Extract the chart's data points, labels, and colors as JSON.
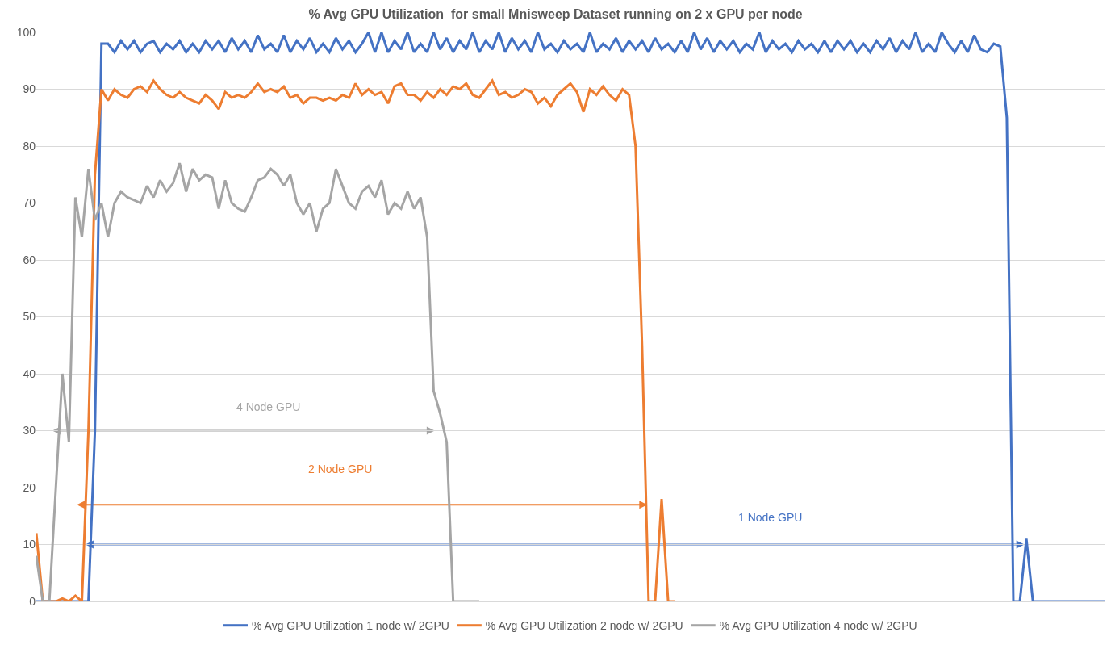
{
  "chart_data": {
    "type": "line",
    "title": "% Avg GPU Utilization  for small Mnisweep Dataset running on 2 x GPU per node",
    "categories": [
      null,
      null,
      null,
      null,
      null,
      null,
      null,
      null,
      null,
      null,
      null,
      null,
      null,
      null,
      null,
      null,
      null,
      null,
      null,
      null,
      null,
      null,
      null,
      null,
      null,
      null,
      null,
      null,
      null,
      null,
      null,
      null,
      null,
      null,
      null,
      null,
      null,
      null,
      null,
      null,
      null,
      null,
      null,
      null,
      null,
      null,
      null,
      null,
      null,
      null,
      null,
      null,
      null,
      null,
      null,
      null,
      null,
      null,
      null,
      null,
      null,
      null,
      null,
      null,
      null,
      null,
      null,
      null,
      null,
      null,
      null,
      null,
      null,
      null,
      null,
      null,
      null,
      null,
      null,
      null,
      null,
      null,
      null,
      null,
      null,
      null,
      null,
      null,
      null,
      null,
      null,
      null,
      null,
      null,
      null,
      null,
      null,
      null,
      null,
      null,
      null,
      null,
      null,
      null,
      null,
      null,
      null,
      null,
      null,
      null,
      null,
      null,
      null,
      null,
      null,
      null,
      null,
      null,
      null,
      null,
      null,
      null,
      null,
      null,
      null,
      null,
      null,
      null,
      null,
      null,
      null,
      null,
      null,
      null,
      null,
      null,
      null,
      null,
      null,
      null,
      null,
      null,
      null,
      null,
      null,
      null,
      null,
      null,
      null,
      null,
      null,
      null,
      null,
      null,
      null,
      null,
      null,
      null,
      null,
      null,
      null,
      null,
      null,
      null,
      null
    ],
    "series": [
      {
        "name": "% Avg GPU Utilization 1 node w/ 2GPU",
        "color": "#4472c4",
        "values": [
          0,
          0,
          0,
          0,
          0,
          0,
          0,
          0,
          0,
          30,
          98,
          98,
          96.5,
          98.5,
          97,
          98.5,
          96.5,
          98,
          98.5,
          96.5,
          98,
          97,
          98.5,
          96.5,
          98,
          96.5,
          98.5,
          97,
          98.5,
          96.5,
          99,
          97,
          98.5,
          96.5,
          99.5,
          97,
          98,
          96.5,
          99.5,
          96.5,
          98.5,
          97,
          99,
          96.5,
          98,
          96.5,
          99,
          97,
          98.5,
          96.5,
          98,
          100,
          96.5,
          100,
          96.5,
          98.5,
          97,
          100,
          96.5,
          98,
          96.5,
          100,
          97,
          99,
          96.5,
          98.5,
          97,
          100,
          96.5,
          98.5,
          97,
          100,
          96.5,
          99,
          97,
          98.5,
          96.5,
          100,
          97,
          98,
          96.5,
          98.5,
          97,
          98,
          96.5,
          100,
          96.5,
          98,
          97,
          99,
          96.5,
          98.5,
          97,
          98.5,
          96.5,
          99,
          97,
          98,
          96.5,
          98.5,
          96.5,
          100,
          97,
          99,
          96.5,
          98.5,
          97,
          98.5,
          96.5,
          98,
          97,
          100,
          96.5,
          98.5,
          97,
          98,
          96.5,
          98.5,
          97,
          98,
          96.5,
          98.5,
          96.5,
          98.5,
          97,
          98.5,
          96.5,
          98,
          96.5,
          98.5,
          97,
          99,
          96.5,
          98.5,
          97,
          100,
          96.5,
          98,
          96.5,
          100,
          98,
          96.5,
          98.5,
          96.5,
          99.5,
          97,
          96.5,
          98,
          97.5,
          85,
          0,
          0,
          11,
          0,
          0,
          0,
          0,
          0,
          0,
          0,
          0,
          0,
          0,
          0,
          0
        ]
      },
      {
        "name": "% Avg GPU Utilization 2 node w/ 2GPU",
        "color": "#ed7d31",
        "values": [
          12,
          0,
          0,
          0,
          0.5,
          0,
          1,
          0,
          30,
          75,
          90,
          88,
          90,
          89,
          88.5,
          90,
          90.5,
          89.5,
          91.5,
          90,
          89,
          88.5,
          89.5,
          88.5,
          88,
          87.5,
          89,
          88,
          86.5,
          89.5,
          88.5,
          89,
          88.5,
          89.5,
          91,
          89.5,
          90,
          89.5,
          90.5,
          88.5,
          89,
          87.5,
          88.5,
          88.5,
          88,
          88.5,
          88,
          89,
          88.5,
          91,
          89,
          90,
          89,
          89.5,
          87.5,
          90.5,
          91,
          89,
          89,
          88,
          89.5,
          88.5,
          90,
          89,
          90.5,
          90,
          91,
          89,
          88.5,
          90,
          91.5,
          89,
          89.5,
          88.5,
          89,
          90,
          89.5,
          87.5,
          88.5,
          87,
          89,
          90,
          91,
          89.5,
          86,
          90,
          89,
          90.5,
          89,
          88,
          90,
          89,
          80,
          45,
          0,
          0,
          18,
          0,
          0,
          null,
          null,
          null,
          null,
          null,
          null,
          null,
          null,
          null,
          null,
          null,
          null,
          null,
          null,
          null,
          null,
          null,
          null,
          null,
          null,
          null,
          null,
          null,
          null,
          null,
          null,
          null,
          null,
          null,
          null,
          null,
          null,
          null,
          null,
          null,
          null,
          null,
          null,
          null,
          null,
          null,
          null,
          null,
          null,
          null,
          null,
          null,
          null,
          null,
          null,
          null,
          null,
          null,
          null,
          null,
          null,
          null,
          null,
          null,
          null,
          null,
          null,
          null,
          null,
          null,
          null
        ]
      },
      {
        "name": "% Avg GPU Utilization 4 node w/ 2GPU",
        "color": "#a5a5a5",
        "values": [
          8,
          0,
          0,
          20,
          40,
          28,
          71,
          64,
          76,
          67,
          70,
          64,
          70,
          72,
          71,
          70.5,
          70,
          73,
          71,
          74,
          72,
          73.5,
          77,
          72,
          76,
          74,
          75,
          74.5,
          69,
          74,
          70,
          69,
          68.5,
          71,
          74,
          74.5,
          76,
          75,
          73,
          75,
          70,
          68,
          70,
          65,
          69,
          70,
          76,
          73,
          70,
          69,
          72,
          73,
          71,
          74,
          68,
          70,
          69,
          72,
          69,
          71,
          64,
          37,
          33,
          28,
          0,
          0,
          0,
          0,
          0,
          null,
          null,
          null,
          null,
          null,
          null,
          null,
          null,
          null,
          null,
          null,
          null,
          null,
          null,
          null,
          null,
          null,
          null,
          null,
          null,
          null,
          null,
          null,
          null,
          null,
          null,
          null,
          null,
          null,
          null,
          null,
          null,
          null,
          null,
          null,
          null,
          null,
          null,
          null,
          null,
          null,
          null,
          null,
          null,
          null,
          null,
          null,
          null,
          null,
          null,
          null,
          null,
          null,
          null,
          null,
          null,
          null,
          null,
          null,
          null,
          null,
          null,
          null,
          null,
          null,
          null,
          null,
          null,
          null,
          null,
          null,
          null,
          null,
          null,
          null,
          null,
          null,
          null,
          null,
          null,
          null,
          null,
          null,
          null,
          null,
          null,
          null,
          null,
          null,
          null,
          null,
          null,
          null,
          null,
          null,
          null
        ]
      }
    ],
    "annotations": [
      "1 Node GPU",
      "2 Node GPU",
      "4 Node GPU"
    ],
    "ylim": [
      0,
      100
    ],
    "yticks": [
      0,
      10,
      20,
      30,
      40,
      50,
      60,
      70,
      80,
      90,
      100
    ],
    "grid": "y",
    "legend": "bottom",
    "marker": "none",
    "line_style": "solid"
  }
}
